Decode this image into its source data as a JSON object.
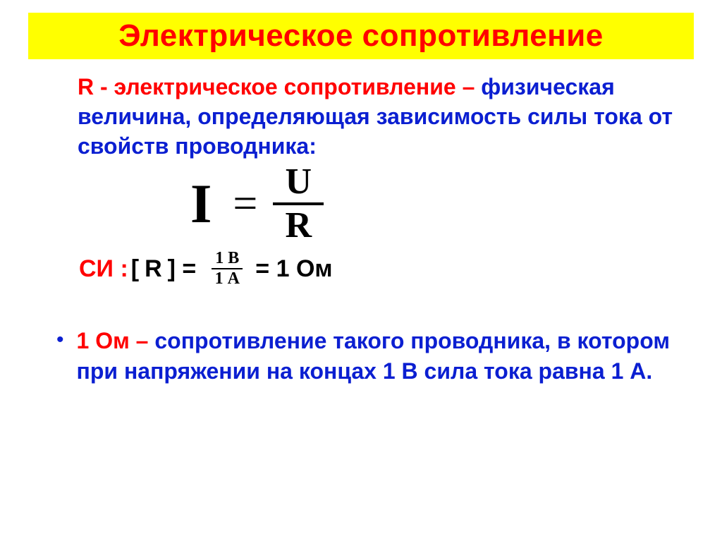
{
  "colors": {
    "title_bg": "#ffff00",
    "title_fg": "#ff0000",
    "text_blue": "#0b1fd1",
    "accent_red": "#ff0000",
    "black": "#000000",
    "page_bg": "#ffffff"
  },
  "title": "Электрическое сопротивление",
  "definition": {
    "lead": "R -  электрическое сопротивление – ",
    "body": "физическая величина, определяющая зависимость силы тока от свойств проводника:"
  },
  "formula": {
    "lhs": "I",
    "equals": "=",
    "numerator": "U",
    "denominator": "R"
  },
  "si": {
    "prefix": "СИ : ",
    "open": "[",
    "sym": "R",
    "close": "] = ",
    "frac_num": "1 В",
    "frac_den": "1 А",
    "result": " =  1 Ом"
  },
  "ohm_def": {
    "lead": "1 Ом – ",
    "body": "сопротивление такого проводника, в котором при напряжении на концах 1 В сила тока равна 1 А."
  }
}
